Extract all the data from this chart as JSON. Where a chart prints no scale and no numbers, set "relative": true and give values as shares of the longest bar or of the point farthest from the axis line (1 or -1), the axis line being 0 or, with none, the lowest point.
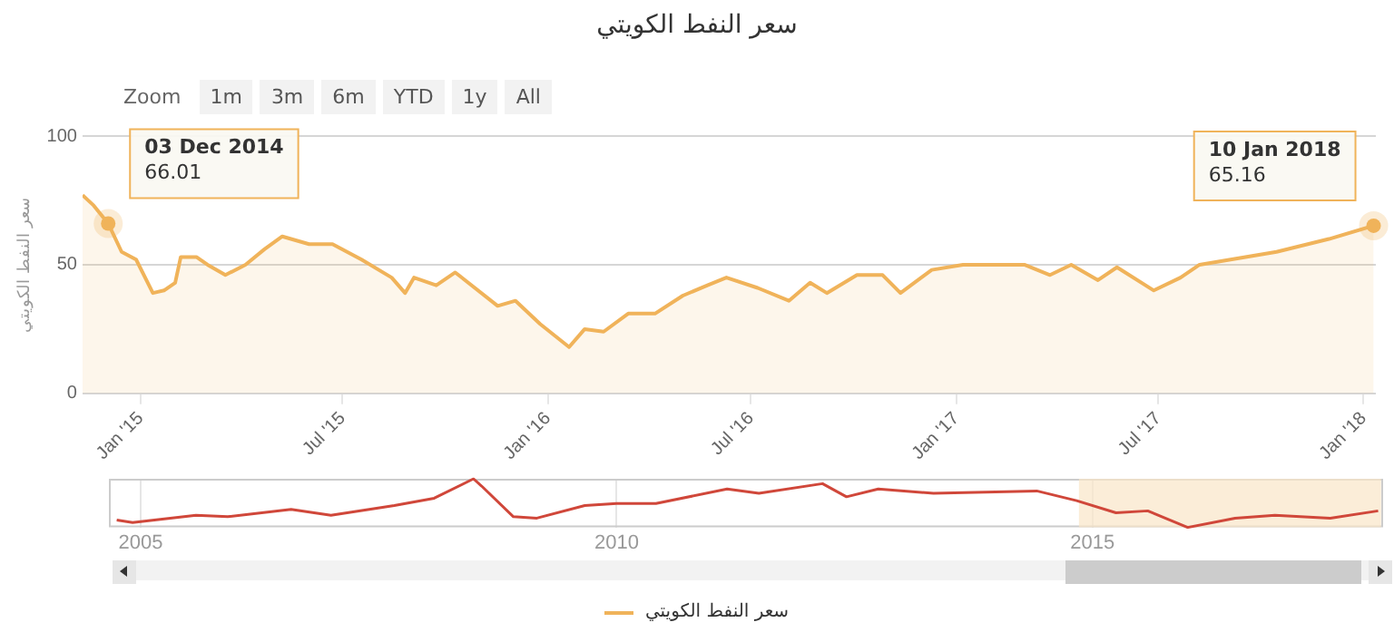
{
  "chart_data": [
    {
      "type": "area",
      "title": "سعر النفط الكويتي",
      "ylabel": "سعر النفط الكويتي",
      "x": [
        "2014-11-10",
        "2014-11-20",
        "2014-12-03",
        "2014-12-15",
        "2014-12-28",
        "2015-01-12",
        "2015-01-22",
        "2015-02-01",
        "2015-02-06",
        "2015-02-20",
        "2015-03-02",
        "2015-03-18",
        "2015-04-05",
        "2015-04-22",
        "2015-05-08",
        "2015-06-01",
        "2015-06-22",
        "2015-07-18",
        "2015-08-14",
        "2015-08-26",
        "2015-09-03",
        "2015-09-23",
        "2015-10-10",
        "2015-11-17",
        "2015-12-03",
        "2015-12-25",
        "2016-01-20",
        "2016-02-03",
        "2016-02-20",
        "2016-03-13",
        "2016-04-06",
        "2016-05-01",
        "2016-05-23",
        "2016-06-09",
        "2016-07-07",
        "2016-08-04",
        "2016-08-23",
        "2016-09-07",
        "2016-10-04",
        "2016-10-27",
        "2016-11-12",
        "2016-12-10",
        "2017-01-07",
        "2017-03-03",
        "2017-03-26",
        "2017-04-14",
        "2017-05-08",
        "2017-05-25",
        "2017-06-27",
        "2017-07-21",
        "2017-08-07",
        "2017-10-15",
        "2017-12-01",
        "2018-01-10"
      ],
      "series": [
        {
          "name": "سعر النفط الكويتي",
          "color": "#f0b35a",
          "values": [
            77,
            73,
            66.01,
            55,
            52,
            39,
            40,
            43,
            53,
            53,
            50,
            46,
            50,
            56,
            61,
            58,
            58,
            52,
            45,
            39,
            45,
            42,
            47,
            34,
            36,
            27,
            18,
            25,
            24,
            31,
            31,
            38,
            42,
            45,
            41,
            36,
            43,
            39,
            46,
            46,
            39,
            48,
            50,
            50,
            46,
            50,
            44,
            49,
            40,
            45,
            50,
            55,
            60,
            65.16
          ]
        }
      ],
      "xlim": [
        "2014-11-10",
        "2018-01-12"
      ],
      "xticks": [
        {
          "value": "2015-01-01",
          "label": "Jan '15"
        },
        {
          "value": "2015-07-01",
          "label": "Jul '15"
        },
        {
          "value": "2016-01-01",
          "label": "Jan '16"
        },
        {
          "value": "2016-07-01",
          "label": "Jul '16"
        },
        {
          "value": "2017-01-01",
          "label": "Jan '17"
        },
        {
          "value": "2017-07-01",
          "label": "Jul '17"
        },
        {
          "value": "2018-01-01",
          "label": "Jan '18"
        }
      ],
      "ylim": [
        0,
        100
      ],
      "yticks": [
        0,
        50,
        100
      ],
      "grid": "y",
      "legend": "bottom",
      "annotations": [
        "Zoom",
        "1m",
        "3m",
        "6m",
        "YTD",
        "1y",
        "All",
        {
          "text": "03 Dec 2014\n66.01",
          "x": "2014-12-03",
          "y": 66.01
        },
        {
          "text": "10 Jan 2018\n65.16",
          "x": "2018-01-10",
          "y": 65.16
        }
      ]
    },
    {
      "type": "line",
      "relative": true,
      "x": [
        "2004-10",
        "2004-12",
        "2005-08",
        "2005-12",
        "2006-08",
        "2007-01",
        "2007-09",
        "2008-02",
        "2008-07",
        "2008-08",
        "2008-12",
        "2009-03",
        "2009-09",
        "2010-01",
        "2010-06",
        "2011-03",
        "2011-07",
        "2012-03",
        "2012-06",
        "2012-10",
        "2013-05",
        "2014-06",
        "2014-11",
        "2015-04",
        "2015-08",
        "2016-01",
        "2016-07",
        "2016-12",
        "2017-07",
        "2018-01"
      ],
      "series": [
        {
          "color": "#d0473a",
          "values": [
            0.15,
            0.1,
            0.25,
            0.22,
            0.37,
            0.25,
            0.45,
            0.6,
            1,
            0.85,
            0.22,
            0.19,
            0.45,
            0.49,
            0.49,
            0.79,
            0.7,
            0.9,
            0.63,
            0.79,
            0.7,
            0.75,
            0.55,
            0.3,
            0.34,
            0,
            0.19,
            0.25,
            0.19,
            0.34
          ]
        }
      ],
      "xlim": [
        "2004-09",
        "2018-01-20"
      ],
      "xticks": [
        "2005",
        "2010",
        "2015"
      ],
      "grid": "x",
      "tick_labels": "x",
      "bands": [
        {
          "axis": "x",
          "from": "2014-11-10",
          "to": "2018-01-12",
          "color": "#f9e6c8"
        }
      ]
    }
  ]
}
